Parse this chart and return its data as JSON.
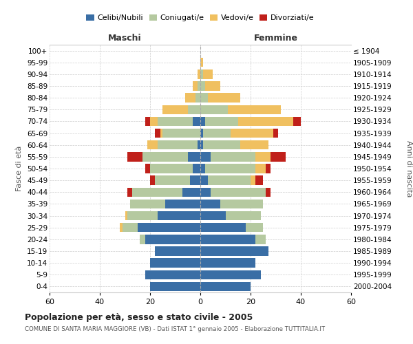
{
  "age_groups": [
    "0-4",
    "5-9",
    "10-14",
    "15-19",
    "20-24",
    "25-29",
    "30-34",
    "35-39",
    "40-44",
    "45-49",
    "50-54",
    "55-59",
    "60-64",
    "65-69",
    "70-74",
    "75-79",
    "80-84",
    "85-89",
    "90-94",
    "95-99",
    "100+"
  ],
  "birth_years": [
    "2000-2004",
    "1995-1999",
    "1990-1994",
    "1985-1989",
    "1980-1984",
    "1975-1979",
    "1970-1974",
    "1965-1969",
    "1960-1964",
    "1955-1959",
    "1950-1954",
    "1945-1949",
    "1940-1944",
    "1935-1939",
    "1930-1934",
    "1925-1929",
    "1920-1924",
    "1915-1919",
    "1910-1914",
    "1905-1909",
    "≤ 1904"
  ],
  "maschi": {
    "celibi": [
      20,
      22,
      20,
      18,
      22,
      25,
      17,
      14,
      7,
      4,
      3,
      5,
      1,
      0,
      3,
      0,
      0,
      0,
      0,
      0,
      0
    ],
    "coniugati": [
      0,
      0,
      0,
      0,
      2,
      6,
      12,
      14,
      20,
      14,
      17,
      18,
      16,
      15,
      14,
      5,
      2,
      1,
      0,
      0,
      0
    ],
    "vedovi": [
      0,
      0,
      0,
      0,
      0,
      1,
      1,
      0,
      0,
      0,
      0,
      0,
      4,
      1,
      3,
      10,
      4,
      2,
      1,
      0,
      0
    ],
    "divorziati": [
      0,
      0,
      0,
      0,
      0,
      0,
      0,
      0,
      2,
      2,
      2,
      6,
      0,
      2,
      2,
      0,
      0,
      0,
      0,
      0,
      0
    ]
  },
  "femmine": {
    "nubili": [
      20,
      24,
      22,
      27,
      22,
      18,
      10,
      8,
      4,
      3,
      2,
      4,
      1,
      1,
      2,
      0,
      0,
      0,
      0,
      0,
      0
    ],
    "coniugate": [
      0,
      0,
      0,
      0,
      4,
      7,
      14,
      17,
      22,
      17,
      20,
      18,
      15,
      11,
      13,
      11,
      3,
      2,
      1,
      0,
      0
    ],
    "vedove": [
      0,
      0,
      0,
      0,
      0,
      0,
      0,
      0,
      0,
      2,
      4,
      6,
      11,
      17,
      22,
      21,
      13,
      6,
      4,
      1,
      0
    ],
    "divorziate": [
      0,
      0,
      0,
      0,
      0,
      0,
      0,
      0,
      2,
      3,
      2,
      6,
      0,
      2,
      3,
      0,
      0,
      0,
      0,
      0,
      0
    ]
  },
  "color_celibi": "#3a6ea5",
  "color_coniugati": "#b5c9a0",
  "color_vedovi": "#f0c060",
  "color_divorziati": "#c0201a",
  "xlim": 60,
  "title": "Popolazione per età, sesso e stato civile - 2005",
  "subtitle": "COMUNE DI SANTA MARIA MAGGIORE (VB) - Dati ISTAT 1° gennaio 2005 - Elaborazione TUTTITALIA.IT",
  "ylabel_left": "Fasce di età",
  "ylabel_right": "Anni di nascita",
  "xlabel_maschi": "Maschi",
  "xlabel_femmine": "Femmine",
  "bg_color": "#ffffff",
  "grid_color": "#cccccc"
}
